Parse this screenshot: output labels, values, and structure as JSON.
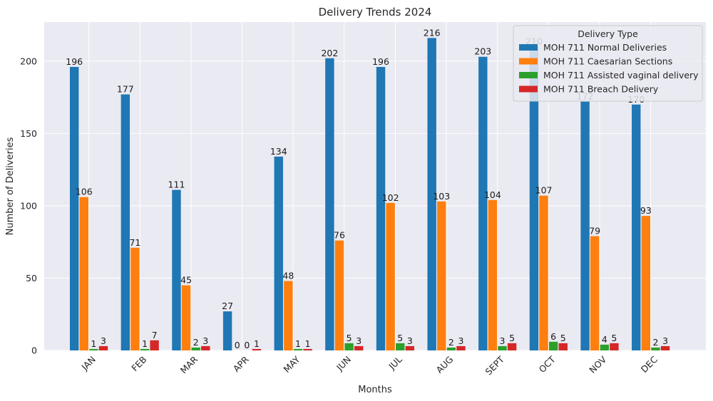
{
  "chart_data": {
    "type": "bar",
    "title": "Delivery Trends 2024",
    "xlabel": "Months",
    "ylabel": "Number of Deliveries",
    "categories": [
      "JAN",
      "FEB",
      "MAR",
      "APR",
      "MAY",
      "JUN",
      "JUL",
      "AUG",
      "SEPT",
      "OCT",
      "NOV",
      "DEC"
    ],
    "series": [
      {
        "name": "MOH 711 Normal Deliveries",
        "color": "#1f77b4",
        "values": [
          196,
          177,
          111,
          27,
          134,
          202,
          196,
          216,
          203,
          210,
          172,
          170
        ]
      },
      {
        "name": "MOH 711 Caesarian Sections",
        "color": "#ff7f0e",
        "values": [
          106,
          71,
          45,
          0,
          48,
          76,
          102,
          103,
          104,
          107,
          79,
          93
        ]
      },
      {
        "name": "MOH 711 Assisted vaginal delivery",
        "color": "#2ca02c",
        "values": [
          1,
          1,
          2,
          0,
          1,
          5,
          5,
          2,
          3,
          6,
          4,
          2
        ]
      },
      {
        "name": "MOH 711 Breach Delivery",
        "color": "#d62728",
        "values": [
          3,
          7,
          3,
          1,
          1,
          3,
          3,
          3,
          5,
          5,
          5,
          3
        ]
      }
    ],
    "ylim": [
      0,
      227
    ],
    "yticks": [
      0,
      50,
      100,
      150,
      200
    ],
    "grid": true,
    "legend": {
      "title": "Delivery Type",
      "position": "top-right"
    },
    "background": "#eaeaf2"
  }
}
